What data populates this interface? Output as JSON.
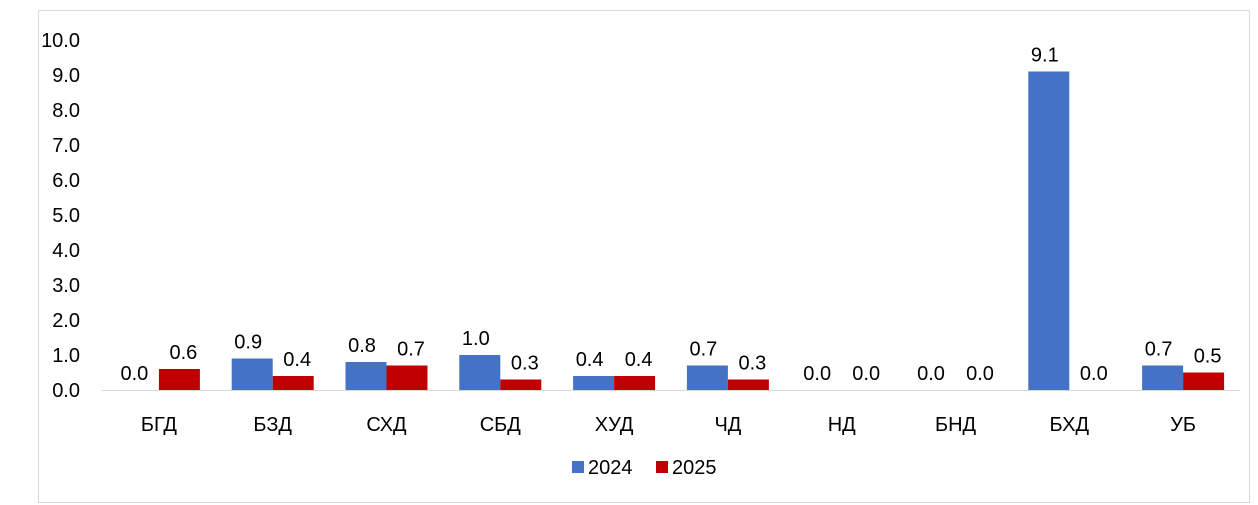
{
  "chart_data": {
    "type": "bar",
    "categories": [
      "БГД",
      "БЗД",
      "СХД",
      "СБД",
      "ХУД",
      "ЧД",
      "НД",
      "БНД",
      "БХД",
      "УБ"
    ],
    "series": [
      {
        "name": "2024",
        "color": "#4472c4",
        "values": [
          0.0,
          0.9,
          0.8,
          1.0,
          0.4,
          0.7,
          0.0,
          0.0,
          9.1,
          0.7
        ]
      },
      {
        "name": "2025",
        "color": "#c00000",
        "values": [
          0.6,
          0.4,
          0.7,
          0.3,
          0.4,
          0.3,
          0.0,
          0.0,
          0.0,
          0.5
        ]
      }
    ],
    "ylim": [
      0,
      10
    ],
    "yticks": [
      "0.0",
      "1.0",
      "2.0",
      "3.0",
      "4.0",
      "5.0",
      "6.0",
      "7.0",
      "8.0",
      "9.0",
      "10.0"
    ],
    "grid": false,
    "legend": "bottom-center",
    "data_labels": true
  }
}
